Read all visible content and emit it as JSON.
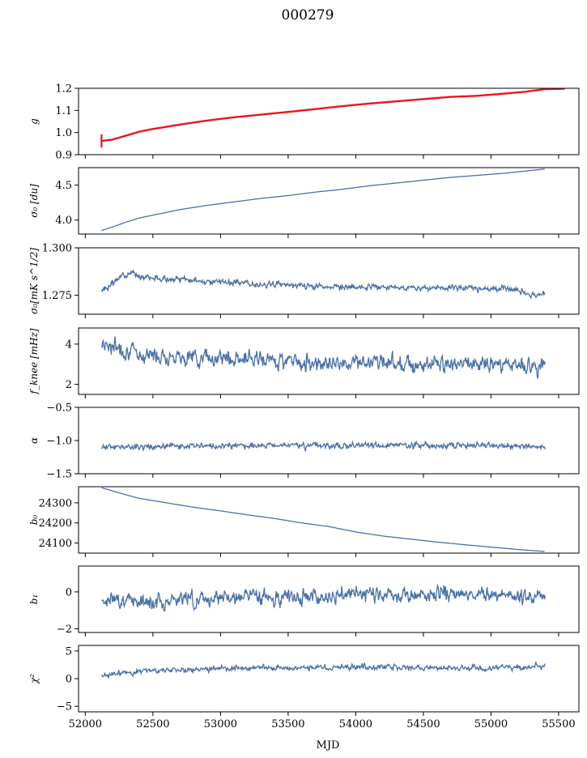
{
  "figure": {
    "title": "000279",
    "xlabel": "MJD",
    "line_color": "#4a72a6",
    "overlay_color": "#e8161b"
  },
  "chart_data": [
    {
      "type": "line",
      "ylabel": "g",
      "xlim": [
        51950,
        55650
      ],
      "ylim": [
        0.9,
        1.2
      ],
      "yticks": [
        0.9,
        1.0,
        1.1,
        1.2
      ],
      "ytick_labels": [
        "0.9",
        "1.0",
        "1.1",
        "1.2"
      ],
      "series": [
        {
          "role": "trace",
          "color": "#4a72a6",
          "x": [
            52120,
            52200,
            52300,
            52400,
            52500,
            52700,
            52900,
            53100,
            53300,
            53500,
            53700,
            53900,
            54100,
            54300,
            54500,
            54700,
            54900,
            55100,
            55250,
            55400
          ],
          "y": [
            0.96,
            0.968,
            0.985,
            1.003,
            1.015,
            1.035,
            1.053,
            1.068,
            1.08,
            1.092,
            1.105,
            1.118,
            1.13,
            1.14,
            1.15,
            1.16,
            1.165,
            1.175,
            1.183,
            1.195
          ]
        },
        {
          "role": "overlay",
          "color": "#e8161b",
          "x": [
            52120,
            52200,
            52300,
            52400,
            52500,
            52700,
            52900,
            53100,
            53300,
            53500,
            53700,
            53900,
            54100,
            54300,
            54500,
            54700,
            54900,
            55100,
            55250,
            55400,
            55550
          ],
          "y": [
            0.962,
            0.968,
            0.986,
            1.004,
            1.016,
            1.036,
            1.054,
            1.069,
            1.081,
            1.093,
            1.106,
            1.119,
            1.131,
            1.141,
            1.151,
            1.161,
            1.166,
            1.176,
            1.184,
            1.196,
            1.198
          ]
        }
      ]
    },
    {
      "type": "line",
      "ylabel": "σ₀ [du]",
      "xlim": [
        51950,
        55650
      ],
      "ylim": [
        3.8,
        4.75
      ],
      "yticks": [
        4.0,
        4.5
      ],
      "ytick_labels": [
        "4.0",
        "4.5"
      ],
      "series": [
        {
          "role": "trace",
          "color": "#4a72a6",
          "x": [
            52120,
            52200,
            52300,
            52400,
            52500,
            52700,
            52900,
            53100,
            53300,
            53500,
            53700,
            53900,
            54100,
            54300,
            54500,
            54700,
            54900,
            55100,
            55250,
            55400
          ],
          "y": [
            3.85,
            3.9,
            3.97,
            4.03,
            4.07,
            4.15,
            4.21,
            4.26,
            4.31,
            4.35,
            4.4,
            4.44,
            4.49,
            4.53,
            4.57,
            4.61,
            4.64,
            4.67,
            4.7,
            4.73
          ]
        }
      ]
    },
    {
      "type": "line",
      "ylabel": "σ₀[mK s^1/2]",
      "xlim": [
        51950,
        55650
      ],
      "ylim": [
        1.265,
        1.3
      ],
      "yticks": [
        1.275,
        1.3
      ],
      "ytick_labels": [
        "1.275",
        "1.300"
      ],
      "noise": 0.0022,
      "seed": 3,
      "series": [
        {
          "role": "trace",
          "color": "#4a72a6",
          "x": [
            52120,
            52200,
            52300,
            52500,
            52700,
            53000,
            53300,
            53600,
            54000,
            54400,
            54800,
            55200,
            55300,
            55400
          ],
          "y": [
            1.277,
            1.281,
            1.287,
            1.284,
            1.283,
            1.282,
            1.281,
            1.28,
            1.279,
            1.279,
            1.279,
            1.278,
            1.275,
            1.276
          ]
        }
      ]
    },
    {
      "type": "line",
      "ylabel": "f_knee [mHz]",
      "xlim": [
        51950,
        55650
      ],
      "ylim": [
        1.5,
        4.8
      ],
      "yticks": [
        2,
        4
      ],
      "ytick_labels": [
        "2",
        "4"
      ],
      "noise": 0.55,
      "seed": 7,
      "series": [
        {
          "role": "trace",
          "color": "#4a72a6",
          "x": [
            52120,
            52200,
            52400,
            52700,
            53000,
            53400,
            53800,
            54200,
            54600,
            55000,
            55400
          ],
          "y": [
            4.1,
            3.9,
            3.5,
            3.4,
            3.3,
            3.2,
            3.1,
            3.1,
            3.0,
            3.0,
            2.9
          ]
        }
      ]
    },
    {
      "type": "line",
      "ylabel": "α",
      "xlim": [
        51950,
        55650
      ],
      "ylim": [
        -1.5,
        -0.5
      ],
      "yticks": [
        -1.5,
        -1.0,
        -0.5
      ],
      "ytick_labels": [
        "−1.5",
        "−1.0",
        "−0.5"
      ],
      "noise": 0.06,
      "seed": 11,
      "series": [
        {
          "role": "trace",
          "color": "#4a72a6",
          "x": [
            52120,
            52500,
            53000,
            53500,
            54000,
            54500,
            55000,
            55400
          ],
          "y": [
            -1.1,
            -1.09,
            -1.08,
            -1.07,
            -1.08,
            -1.07,
            -1.08,
            -1.09
          ]
        }
      ]
    },
    {
      "type": "line",
      "ylabel": "b₀",
      "xlim": [
        51950,
        55650
      ],
      "ylim": [
        24050,
        24380
      ],
      "yticks": [
        24100,
        24200,
        24300
      ],
      "ytick_labels": [
        "24100",
        "24200",
        "24300"
      ],
      "series": [
        {
          "role": "trace",
          "color": "#4a72a6",
          "x": [
            52120,
            52200,
            52300,
            52400,
            52600,
            52800,
            53000,
            53200,
            53400,
            53600,
            53800,
            54000,
            54200,
            54400,
            54600,
            54800,
            55000,
            55200,
            55400
          ],
          "y": [
            24375,
            24360,
            24340,
            24322,
            24300,
            24278,
            24260,
            24240,
            24222,
            24200,
            24182,
            24155,
            24135,
            24120,
            24105,
            24092,
            24080,
            24068,
            24058
          ]
        }
      ]
    },
    {
      "type": "line",
      "ylabel": "b₁",
      "xlim": [
        51950,
        55650
      ],
      "ylim": [
        -2.2,
        1.4
      ],
      "yticks": [
        -2,
        0
      ],
      "ytick_labels": [
        "−2",
        "0"
      ],
      "noise": 0.55,
      "seed": 17,
      "series": [
        {
          "role": "trace",
          "color": "#4a72a6",
          "x": [
            52120,
            52500,
            53000,
            53500,
            54000,
            54500,
            55000,
            55400
          ],
          "y": [
            -0.4,
            -0.5,
            -0.3,
            -0.3,
            -0.1,
            -0.2,
            -0.1,
            -0.3
          ]
        }
      ]
    },
    {
      "type": "line",
      "ylabel": "χ²",
      "xlim": [
        51950,
        55650
      ],
      "ylim": [
        -6,
        6
      ],
      "yticks": [
        -5,
        0,
        5
      ],
      "ytick_labels": [
        "−5",
        "0",
        "5"
      ],
      "noise": 0.7,
      "seed": 23,
      "series": [
        {
          "role": "trace",
          "color": "#4a72a6",
          "x": [
            52120,
            52300,
            52600,
            53000,
            53500,
            54000,
            54500,
            55000,
            55400
          ],
          "y": [
            0.3,
            1.2,
            1.6,
            1.8,
            2.0,
            2.1,
            1.9,
            1.8,
            2.3
          ]
        }
      ]
    }
  ],
  "xticks": [
    52000,
    52500,
    53000,
    53500,
    54000,
    54500,
    55000,
    55500
  ],
  "xtick_labels": [
    "52000",
    "52500",
    "53000",
    "53500",
    "54000",
    "54500",
    "55000",
    "55500"
  ]
}
